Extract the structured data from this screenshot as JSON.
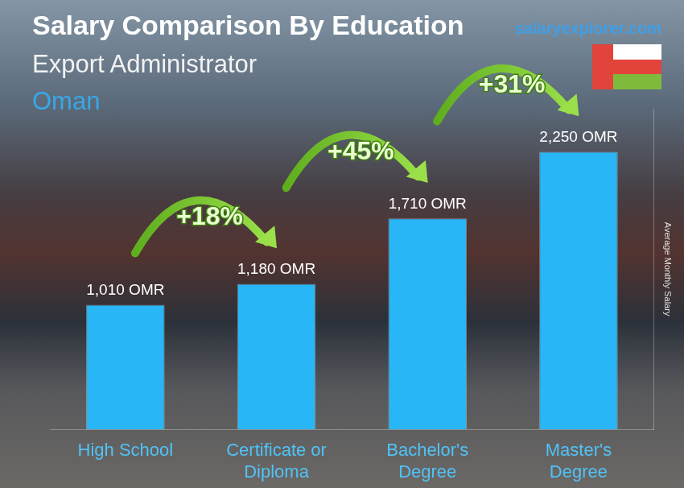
{
  "chart_data": {
    "type": "bar",
    "title": "Salary Comparison By Education",
    "subtitle": "Export Administrator",
    "region": "Oman",
    "source": "salaryexplorer.com",
    "y_label": "Average Monthly Salary",
    "categories": [
      "High School",
      "Certificate or Diploma",
      "Bachelor's Degree",
      "Master's Degree"
    ],
    "values": [
      1010,
      1180,
      1710,
      2250
    ],
    "value_labels": [
      "1,010 OMR",
      "1,180 OMR",
      "1,710 OMR",
      "2,250 OMR"
    ],
    "annotations": [
      "+18%",
      "+45%",
      "+31%"
    ],
    "color": "#29b6f6",
    "ylim": [
      0,
      2600
    ],
    "grid": false,
    "data_labels": true,
    "tick_labels": "x"
  }
}
